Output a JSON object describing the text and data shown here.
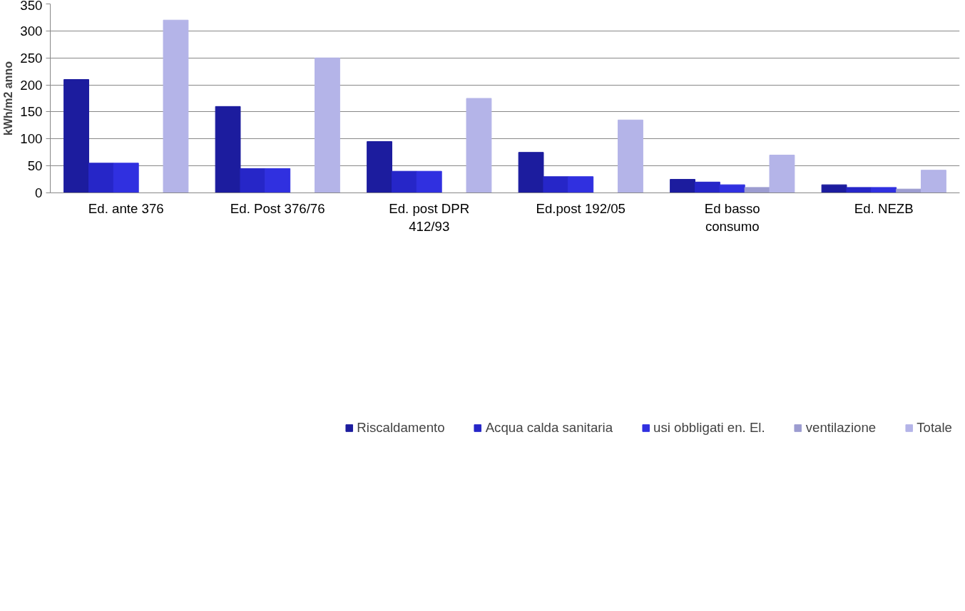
{
  "chart_data": {
    "type": "bar",
    "ylabel": "kWh/m2 anno",
    "categories": [
      "Ed. ante 376",
      "Ed. Post 376/76",
      "Ed. post DPR\n412/93",
      "Ed.post 192/05",
      "Ed basso\nconsumo",
      "Ed. NEZB"
    ],
    "series": [
      {
        "name": "Riscaldamento",
        "color": "#1c1c9e",
        "values": [
          210,
          160,
          95,
          75,
          25,
          15
        ]
      },
      {
        "name": "Acqua calda sanitaria",
        "color": "#2626c8",
        "values": [
          55,
          45,
          40,
          30,
          20,
          10
        ]
      },
      {
        "name": "usi obbligati en. El.",
        "color": "#3030e0",
        "values": [
          55,
          45,
          40,
          30,
          15,
          10
        ]
      },
      {
        "name": "ventilazione",
        "color": "#9c9cd0",
        "values": [
          null,
          null,
          null,
          null,
          10,
          7
        ]
      },
      {
        "name": "Totale",
        "color": "#b4b4e8",
        "values": [
          320,
          250,
          175,
          135,
          70,
          42
        ]
      }
    ],
    "ylim": [
      0,
      350
    ],
    "yticks": [
      0,
      50,
      100,
      150,
      200,
      250,
      300,
      350
    ],
    "grid": "y",
    "legend": "bottom"
  }
}
